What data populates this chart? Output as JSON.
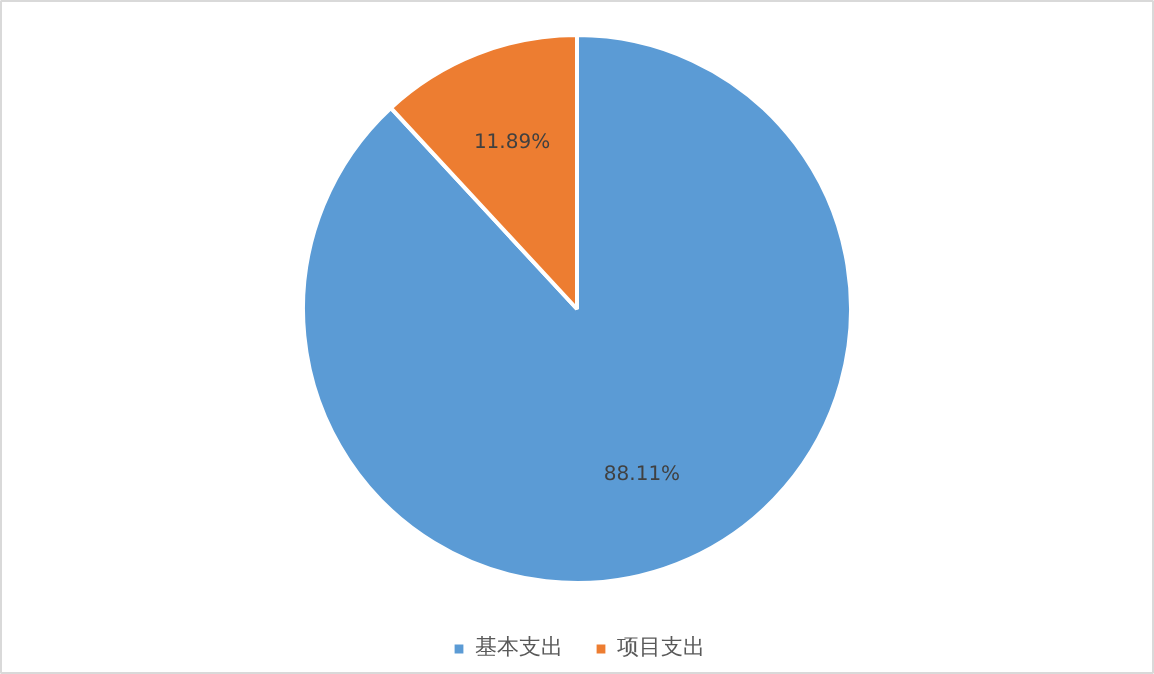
{
  "chart_data": {
    "type": "pie",
    "categories": [
      "基本支出",
      "项目支出"
    ],
    "values": [
      88.11,
      11.89
    ],
    "colors": [
      "#5b9bd5",
      "#ed7d31"
    ],
    "value_labels": [
      "88.11%",
      "11.89%"
    ],
    "legend": "bottom"
  }
}
